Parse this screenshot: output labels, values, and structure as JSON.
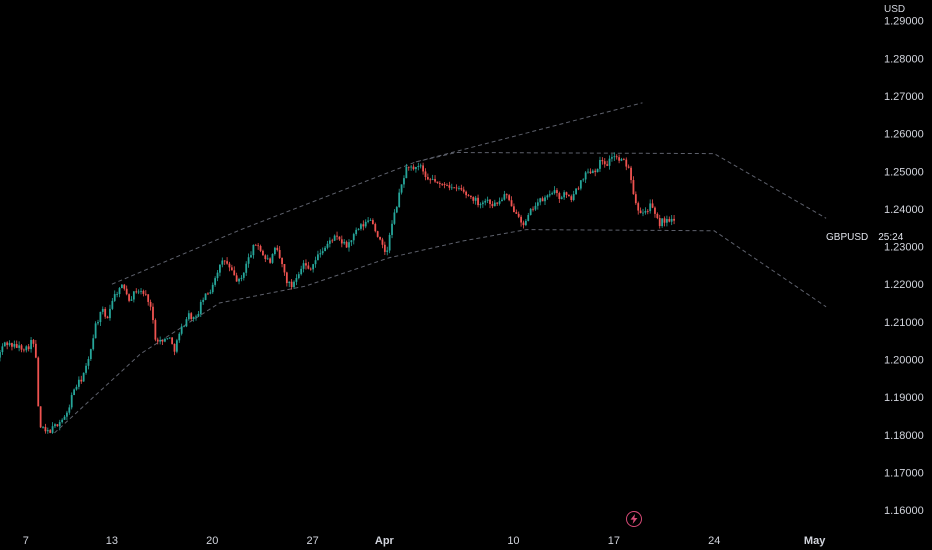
{
  "chart_data": {
    "type": "candlestick",
    "symbol": "GBPUSD",
    "currency": "USD",
    "countdown": "25:24",
    "colors": {
      "up": "#26a69a",
      "down": "#ef5350",
      "background": "#000000",
      "text": "#d1d4dc",
      "trendline": "#5d606b",
      "bolt": "#d64a76"
    },
    "y_axis": {
      "ticks": [
        "1.29000",
        "1.28000",
        "1.27000",
        "1.26000",
        "1.25000",
        "1.24000",
        "1.23000",
        "1.22000",
        "1.21000",
        "1.20000",
        "1.19000",
        "1.18000",
        "1.17000",
        "1.16000"
      ],
      "range": [
        1.1555,
        1.2955
      ]
    },
    "x_axis": {
      "ticks": [
        {
          "label": "7",
          "day": 0,
          "bold": false
        },
        {
          "label": "13",
          "day": 6,
          "bold": false
        },
        {
          "label": "20",
          "day": 13,
          "bold": false
        },
        {
          "label": "27",
          "day": 20,
          "bold": false
        },
        {
          "label": "Apr",
          "day": 25,
          "bold": true
        },
        {
          "label": "10",
          "day": 34,
          "bold": false
        },
        {
          "label": "17",
          "day": 41,
          "bold": false
        },
        {
          "label": "24",
          "day": 48,
          "bold": false
        },
        {
          "label": "May",
          "day": 55,
          "bold": true
        }
      ],
      "range_days": [
        -1.8,
        59
      ]
    },
    "price_path": [
      [
        -1.8,
        1.2005
      ],
      [
        -1.3,
        1.2045
      ],
      [
        -0.6,
        1.2035
      ],
      [
        0.3,
        1.203
      ],
      [
        0.6,
        1.2055
      ],
      [
        0.9,
        1.2
      ],
      [
        1.0,
        1.188
      ],
      [
        1.2,
        1.182
      ],
      [
        1.6,
        1.1805
      ],
      [
        2.0,
        1.1815
      ],
      [
        2.5,
        1.1835
      ],
      [
        3.0,
        1.185
      ],
      [
        3.5,
        1.192
      ],
      [
        4.0,
        1.1945
      ],
      [
        4.5,
        1.199
      ],
      [
        5.0,
        1.209
      ],
      [
        5.5,
        1.213
      ],
      [
        5.8,
        1.2105
      ],
      [
        6.2,
        1.216
      ],
      [
        6.6,
        1.2185
      ],
      [
        7.0,
        1.2195
      ],
      [
        7.4,
        1.216
      ],
      [
        7.9,
        1.2185
      ],
      [
        8.4,
        1.2175
      ],
      [
        8.8,
        1.2155
      ],
      [
        9.2,
        1.206
      ],
      [
        9.7,
        1.2045
      ],
      [
        10.1,
        1.2065
      ],
      [
        10.5,
        1.2025
      ],
      [
        11.0,
        1.208
      ],
      [
        11.5,
        1.212
      ],
      [
        12.0,
        1.2105
      ],
      [
        12.5,
        1.216
      ],
      [
        13.0,
        1.218
      ],
      [
        13.5,
        1.2235
      ],
      [
        14.0,
        1.2265
      ],
      [
        14.4,
        1.224
      ],
      [
        14.8,
        1.2215
      ],
      [
        15.1,
        1.2205
      ],
      [
        15.5,
        1.225
      ],
      [
        16.0,
        1.2295
      ],
      [
        16.3,
        1.231
      ],
      [
        16.8,
        1.227
      ],
      [
        17.2,
        1.226
      ],
      [
        17.6,
        1.2295
      ],
      [
        18.0,
        1.2255
      ],
      [
        18.4,
        1.2205
      ],
      [
        18.7,
        1.2195
      ],
      [
        19.0,
        1.222
      ],
      [
        19.5,
        1.2255
      ],
      [
        19.9,
        1.224
      ],
      [
        20.3,
        1.226
      ],
      [
        20.7,
        1.2285
      ],
      [
        21.1,
        1.23
      ],
      [
        21.6,
        1.2325
      ],
      [
        22.1,
        1.2315
      ],
      [
        22.5,
        1.23
      ],
      [
        22.9,
        1.232
      ],
      [
        23.3,
        1.2345
      ],
      [
        23.8,
        1.236
      ],
      [
        24.2,
        1.2375
      ],
      [
        24.6,
        1.234
      ],
      [
        25.0,
        1.23
      ],
      [
        25.3,
        1.228
      ],
      [
        25.7,
        1.236
      ],
      [
        26.1,
        1.242
      ],
      [
        26.4,
        1.247
      ],
      [
        26.8,
        1.252
      ],
      [
        27.2,
        1.25
      ],
      [
        27.7,
        1.2515
      ],
      [
        28.1,
        1.247
      ],
      [
        28.6,
        1.248
      ],
      [
        29.0,
        1.246
      ],
      [
        29.5,
        1.247
      ],
      [
        30.0,
        1.245
      ],
      [
        30.4,
        1.2455
      ],
      [
        30.8,
        1.244
      ],
      [
        31.3,
        1.243
      ],
      [
        31.8,
        1.2415
      ],
      [
        32.3,
        1.2425
      ],
      [
        32.8,
        1.241
      ],
      [
        33.2,
        1.242
      ],
      [
        33.6,
        1.244
      ],
      [
        34.0,
        1.2405
      ],
      [
        34.5,
        1.239
      ],
      [
        34.9,
        1.235
      ],
      [
        35.2,
        1.238
      ],
      [
        35.6,
        1.241
      ],
      [
        36.0,
        1.242
      ],
      [
        36.5,
        1.243
      ],
      [
        36.9,
        1.245
      ],
      [
        37.3,
        1.243
      ],
      [
        37.7,
        1.244
      ],
      [
        38.1,
        1.2425
      ],
      [
        38.5,
        1.2445
      ],
      [
        39.0,
        1.2485
      ],
      [
        39.4,
        1.25
      ],
      [
        39.9,
        1.2505
      ],
      [
        40.3,
        1.253
      ],
      [
        40.7,
        1.252
      ],
      [
        41.1,
        1.2545
      ],
      [
        41.5,
        1.253
      ],
      [
        41.9,
        1.2525
      ],
      [
        42.3,
        1.25
      ],
      [
        42.6,
        1.243
      ],
      [
        42.9,
        1.24
      ],
      [
        43.3,
        1.239
      ],
      [
        43.7,
        1.241
      ],
      [
        44.0,
        1.2385
      ],
      [
        44.3,
        1.236
      ],
      [
        44.6,
        1.237
      ],
      [
        45.0,
        1.2365
      ],
      [
        45.3,
        1.2368
      ]
    ],
    "trendlines": [
      [
        [
          2.0,
          1.1805
        ],
        [
          8.0,
          1.2015
        ],
        [
          13.5,
          1.215
        ],
        [
          19.5,
          1.2195
        ],
        [
          25.3,
          1.227
        ],
        [
          30.5,
          1.2315
        ],
        [
          34.9,
          1.2345
        ],
        [
          44.3,
          1.2343
        ],
        [
          48.0,
          1.2342
        ],
        [
          55.8,
          1.214
        ]
      ],
      [
        [
          6.0,
          1.22
        ],
        [
          15.0,
          1.2345
        ],
        [
          27.2,
          1.2525
        ],
        [
          43.0,
          1.2682
        ]
      ],
      [
        [
          27.2,
          1.2525
        ],
        [
          30.0,
          1.255
        ],
        [
          48.0,
          1.2547
        ],
        [
          55.8,
          1.2375
        ]
      ]
    ]
  }
}
